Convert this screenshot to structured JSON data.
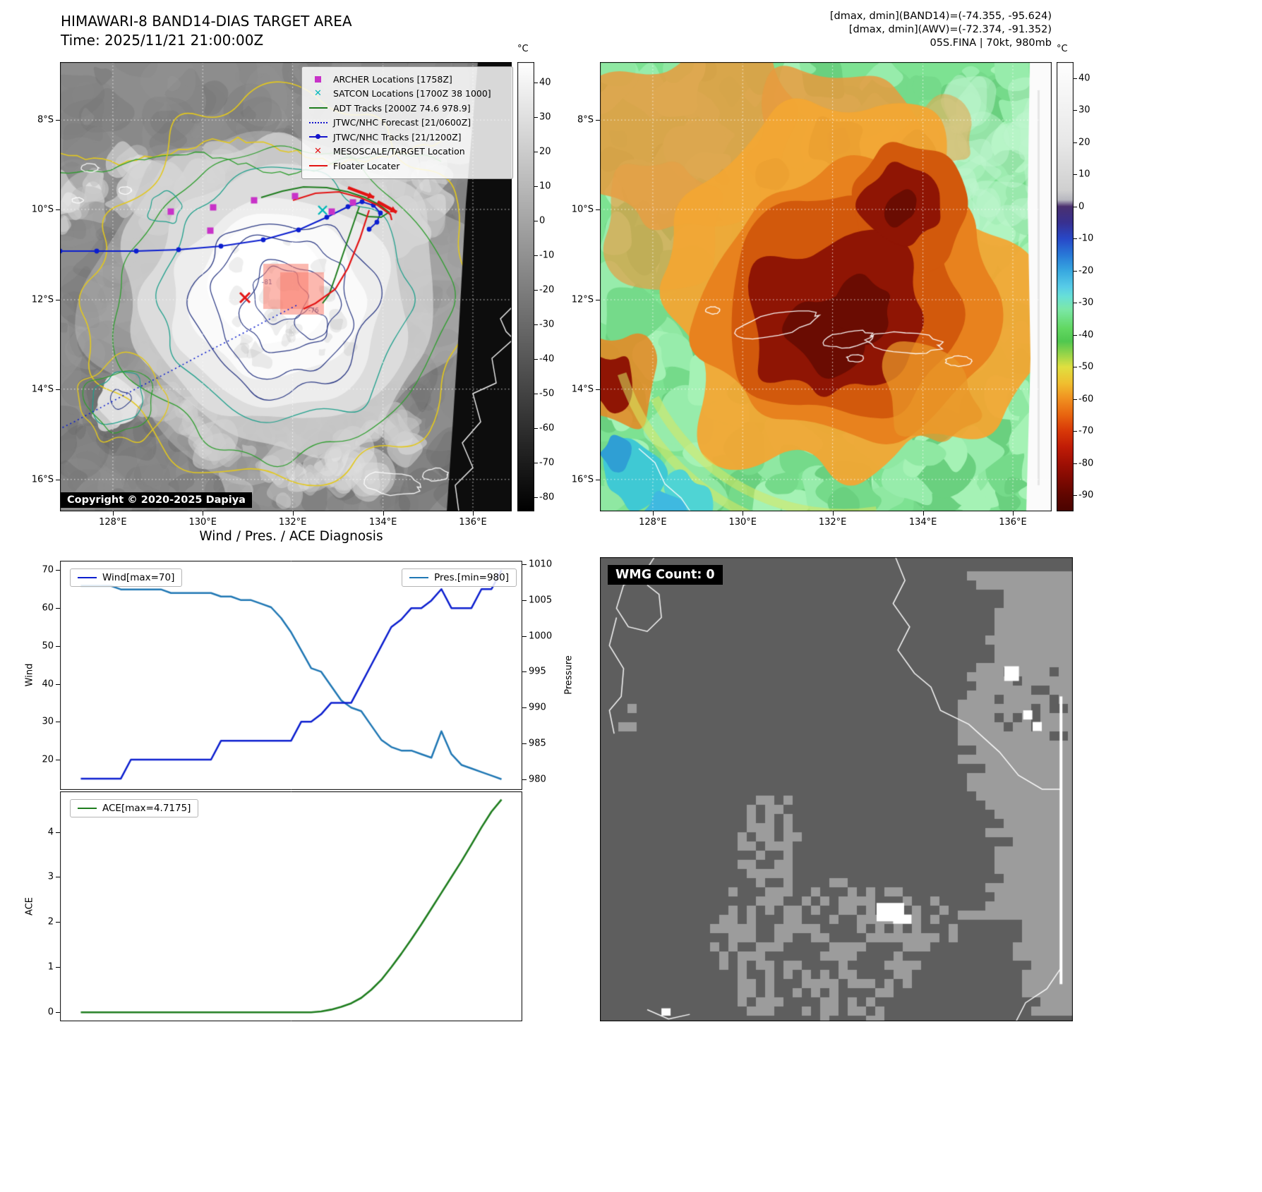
{
  "band14": {
    "title": "HIMAWARI-8 BAND14-DIAS TARGET AREA",
    "time_label": "Time: 2025/11/21 21:00:00Z",
    "copyright": "Copyright © 2020-2025 Dapiya",
    "colorbar_unit": "°C",
    "colorbar_ticks": [
      40,
      30,
      20,
      10,
      0,
      -10,
      -20,
      -30,
      -40,
      -50,
      -60,
      -70,
      -80
    ],
    "x_ticks": [
      "128°E",
      "130°E",
      "132°E",
      "134°E",
      "136°E"
    ],
    "y_ticks": [
      "8°S",
      "10°S",
      "12°S",
      "14°S",
      "16°S"
    ],
    "contour_labels": [
      "-81",
      "-76"
    ],
    "legend": [
      {
        "label": "ARCHER Locations [1758Z]",
        "marker": "square",
        "color": "#c832c8"
      },
      {
        "label": "SATCON Locations [1700Z 38 1000]",
        "marker": "x",
        "color": "#00b8b8"
      },
      {
        "label": "ADT Tracks [2000Z 74.6 978.9]",
        "marker": "line",
        "color": "#1e7d1e"
      },
      {
        "label": "JTWC/NHC Forecast [21/0600Z]",
        "marker": "dotted-line",
        "color": "#1414cc"
      },
      {
        "label": "JTWC/NHC Tracks [21/1200Z]",
        "marker": "line-marker",
        "color": "#1414cc"
      },
      {
        "label": "MESOSCALE/TARGET Location",
        "marker": "x",
        "color": "#e31414"
      },
      {
        "label": "Floater Locater",
        "marker": "line",
        "color": "#e31414"
      }
    ]
  },
  "awv": {
    "info_lines": [
      "[dmax, dmin](BAND14)=(-74.355, -95.624)",
      "[dmax, dmin](AWV)=(-72.374, -91.352)",
      "05S.FINA | 70kt, 980mb"
    ],
    "colorbar_unit": "°C",
    "colorbar_ticks": [
      40,
      30,
      20,
      10,
      0,
      -10,
      -20,
      -30,
      -40,
      -50,
      -60,
      -70,
      -80,
      -90
    ],
    "x_ticks": [
      "128°E",
      "130°E",
      "132°E",
      "134°E",
      "136°E"
    ],
    "y_ticks": [
      "8°S",
      "10°S",
      "12°S",
      "14°S",
      "16°S"
    ]
  },
  "diagnosis": {
    "title": "Wind / Pres. / ACE Diagnosis",
    "wind_legend": "Wind[max=70]",
    "pres_legend": "Pres.[min=980]",
    "ace_legend": "ACE[max=4.7175]",
    "wind_axis": "Wind",
    "pressure_axis": "Pressure",
    "ace_axis": "ACE",
    "wind_ticks": [
      20,
      30,
      40,
      50,
      60,
      70
    ],
    "pressure_ticks": [
      980,
      985,
      990,
      995,
      1000,
      1005,
      1010
    ],
    "ace_ticks": [
      0,
      1,
      2,
      3,
      4
    ]
  },
  "wmg": {
    "label": "WMG Count: 0"
  },
  "chart_data": [
    {
      "type": "line",
      "title": "Wind / Pres. / ACE Diagnosis",
      "x": "time steps (unlabeled)",
      "legend_position": "upper-left / upper-right",
      "grid": false,
      "series": [
        {
          "name": "Wind",
          "axis": "left",
          "color": "#0b1ecf",
          "ylabel": "Wind",
          "ylim": [
            12,
            72.5
          ],
          "max": 70,
          "values": [
            15,
            15,
            15,
            15,
            15,
            20,
            20,
            20,
            20,
            20,
            20,
            20,
            20,
            20,
            25,
            25,
            25,
            25,
            25,
            25,
            25,
            25,
            30,
            30,
            32,
            35,
            35,
            35,
            40,
            45,
            50,
            55,
            57,
            60,
            60,
            62,
            65,
            60,
            60,
            60,
            65,
            65,
            70
          ]
        },
        {
          "name": "Pres.",
          "axis": "right",
          "color": "#1f77b4",
          "ylabel": "Pressure",
          "ylim": [
            978.5,
            1010.5
          ],
          "min": 980,
          "values": [
            1007,
            1007,
            1007,
            1007,
            1006.5,
            1006.5,
            1006.5,
            1006.5,
            1006.5,
            1006,
            1006,
            1006,
            1006,
            1006,
            1005.5,
            1005.5,
            1005,
            1005,
            1004.5,
            1004,
            1002.5,
            1000.5,
            998,
            995.5,
            995,
            993,
            991,
            990,
            989.5,
            987.5,
            985.5,
            984.5,
            984,
            984,
            983.5,
            983,
            986.7,
            983.5,
            982,
            981.5,
            981,
            980.5,
            980
          ]
        }
      ]
    },
    {
      "type": "line",
      "title": "ACE accumulation",
      "x": "time steps (unlabeled)",
      "grid": false,
      "series": [
        {
          "name": "ACE",
          "axis": "left",
          "color": "#1e7d1e",
          "ylabel": "ACE",
          "ylim": [
            -0.2,
            4.9
          ],
          "max": 4.7175,
          "values": [
            0,
            0,
            0,
            0,
            0,
            0,
            0,
            0,
            0,
            0,
            0,
            0,
            0,
            0,
            0,
            0,
            0,
            0,
            0,
            0,
            0,
            0,
            0,
            0,
            0.02,
            0.06,
            0.12,
            0.2,
            0.32,
            0.5,
            0.72,
            1.0,
            1.3,
            1.62,
            1.95,
            2.3,
            2.65,
            3.0,
            3.35,
            3.72,
            4.1,
            4.45,
            4.7175
          ]
        }
      ]
    }
  ]
}
